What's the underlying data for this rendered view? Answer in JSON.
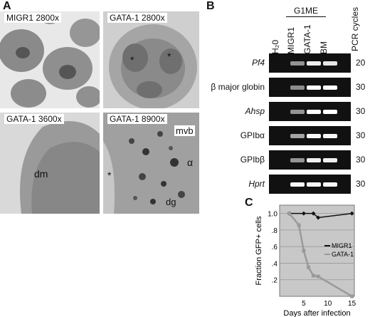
{
  "panel_a": {
    "letter": "A",
    "images": [
      {
        "label": "MIGR1 2800x"
      },
      {
        "label": "GATA-1 2800x"
      },
      {
        "label": "GATA-1 3600x"
      },
      {
        "label": "GATA-1 8900x"
      }
    ],
    "annotations": {
      "dm": "dm",
      "mvb": "mvb",
      "alpha": "α",
      "dg": "dg",
      "star": "*"
    }
  },
  "panel_b": {
    "letter": "B",
    "group_label": "G1ME",
    "columns": [
      "H₂0",
      "MIGR1",
      "GATA-1",
      "BM"
    ],
    "cycles_header": "PCR cycles",
    "rows": [
      {
        "gene": "Pf4",
        "italic": true,
        "cycles": "20",
        "bands": [
          0,
          0.35,
          0.9,
          0.85
        ]
      },
      {
        "gene": "β major globin",
        "italic": false,
        "cycles": "30",
        "bands": [
          0,
          0.3,
          1.0,
          1.0
        ]
      },
      {
        "gene": "Ahsp",
        "italic": true,
        "cycles": "30",
        "bands": [
          0,
          0.35,
          1.0,
          1.0
        ]
      },
      {
        "gene": "GPIbα",
        "italic": false,
        "cycles": "30",
        "bands": [
          0,
          0.45,
          0.95,
          0.95
        ]
      },
      {
        "gene": "GPIbβ",
        "italic": false,
        "cycles": "30",
        "bands": [
          0,
          0.35,
          0.9,
          0.9
        ]
      },
      {
        "gene": "Hprt",
        "italic": true,
        "cycles": "30",
        "bands": [
          0,
          0.95,
          0.95,
          0.95
        ]
      }
    ]
  },
  "panel_c": {
    "letter": "C",
    "chart_data": {
      "type": "line",
      "title": "",
      "xlabel": "Days after infection",
      "ylabel": "Fraction GFP+ cells",
      "xlim": [
        0,
        15.5
      ],
      "ylim": [
        0,
        1.1
      ],
      "xticks": [
        "5",
        "10",
        "15"
      ],
      "yticks": [
        ".2",
        ".4",
        ".6",
        ".8",
        "1.0"
      ],
      "legend_position": "right",
      "series": [
        {
          "name": "MIGR1",
          "color": "#111111",
          "x": [
            2,
            5,
            7,
            8,
            15
          ],
          "y": [
            1.0,
            1.0,
            1.0,
            0.95,
            1.0
          ]
        },
        {
          "name": "GATA-1",
          "color": "#9a9a9a",
          "x": [
            2,
            4,
            5,
            6,
            7,
            8,
            15
          ],
          "y": [
            1.0,
            0.86,
            0.55,
            0.35,
            0.25,
            0.24,
            0.0
          ]
        }
      ],
      "plot_background": "#c8c8c8"
    }
  }
}
